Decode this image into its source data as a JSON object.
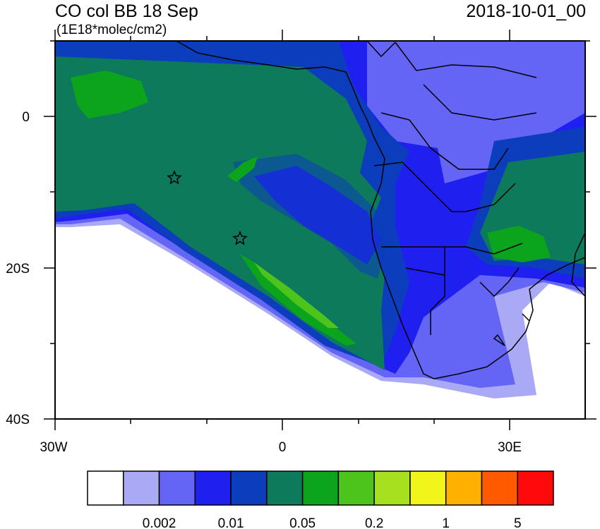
{
  "title": "CO col BB 18 Sep",
  "units": "(1E18*molec/cm2)",
  "timestamp": "2018-10-01_00",
  "map_data": {
    "type": "filled-contour-map",
    "region": "Southern Africa / South Atlantic",
    "lon_range": [
      -30,
      40
    ],
    "lat_range": [
      -40,
      10
    ],
    "x_tick_labels": [
      "30W",
      "0",
      "30E"
    ],
    "y_tick_labels": [
      "0",
      "20S",
      "40S"
    ],
    "markers": [
      {
        "symbol": "star",
        "lon": -14.5,
        "lat": -8
      },
      {
        "symbol": "star",
        "lon": -5.7,
        "lat": -16
      }
    ]
  },
  "colorbar": {
    "colors": [
      "#ffffff",
      "#a9a9f5",
      "#6565f5",
      "#1f1ff0",
      "#0b3dbc",
      "#0e7a5c",
      "#0ca41c",
      "#4cc41c",
      "#a6e01f",
      "#f2f51a",
      "#ffb000",
      "#ff5a00",
      "#ff0a0a"
    ],
    "labels": [
      "0.002",
      "0.01",
      "0.05",
      "0.2",
      "1",
      "5"
    ]
  }
}
